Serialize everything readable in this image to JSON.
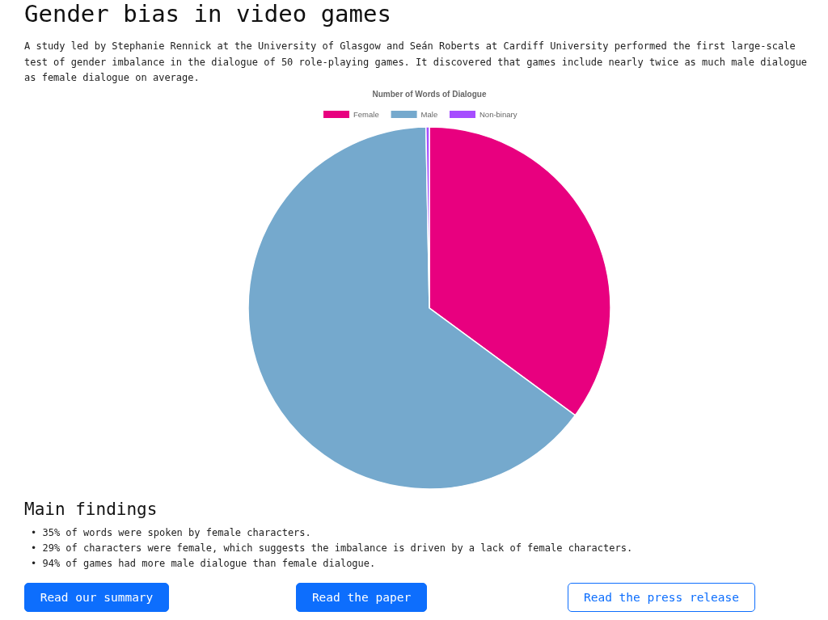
{
  "chart_data": {
    "type": "pie",
    "title": "Gender bias in video games",
    "subtitle": "A study led by Stephanie Rennick at the University of Glasgow and Seán Roberts at Cardiff University performed the first large-scale test of gender imbalance in the dialogue of 50 role-playing games. It discovered that games include nearly twice as much male dialogue as female dialogue on average.",
    "legend_title": "Number of Words of Dialogue",
    "categories": [
      "Female",
      "Male",
      "Non-binary"
    ],
    "values": [
      35.1,
      64.6,
      0.3
    ],
    "colors": [
      "#e8007f",
      "#75a9cd",
      "#a64dff"
    ],
    "legend": "top",
    "annotations": [
      "Main findings",
      "• 35% of words were spoken by female characters.",
      "• 29% of characters were female, which suggests the imbalance is driven by a lack of female characters.",
      "• 94% of games had more male dialogue than female dialogue.",
      "Read our summary",
      "Read the paper",
      "Read the press release"
    ]
  }
}
